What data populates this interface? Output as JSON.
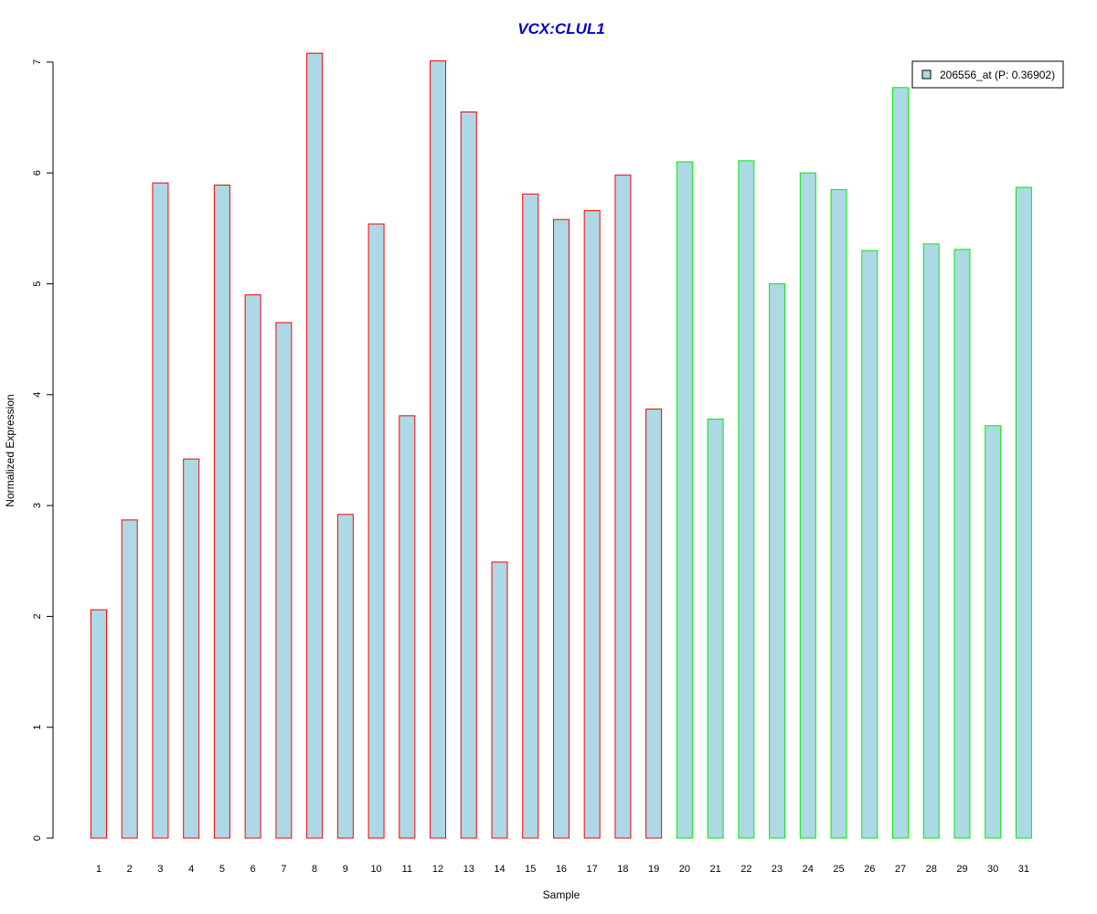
{
  "chart_data": {
    "type": "bar",
    "title": "VCX:CLUL1",
    "xlabel": "Sample",
    "ylabel": "Normalized Expression",
    "ylim": [
      0,
      7
    ],
    "yticks": [
      0,
      1,
      2,
      3,
      4,
      5,
      6,
      7
    ],
    "grid": false,
    "legend_position": "top-right",
    "categories": [
      "1",
      "2",
      "3",
      "4",
      "5",
      "6",
      "7",
      "8",
      "9",
      "10",
      "11",
      "12",
      "13",
      "14",
      "15",
      "16",
      "17",
      "18",
      "19",
      "20",
      "21",
      "22",
      "23",
      "24",
      "25",
      "26",
      "27",
      "28",
      "29",
      "30",
      "31"
    ],
    "series": [
      {
        "name": "206556_at (P: 0.36902)",
        "values": [
          2.06,
          2.87,
          5.91,
          3.42,
          5.89,
          4.9,
          4.65,
          7.08,
          2.92,
          5.54,
          3.81,
          7.01,
          6.55,
          2.49,
          5.81,
          5.58,
          5.66,
          5.98,
          3.87,
          6.1,
          3.78,
          6.11,
          5.0,
          6.0,
          5.85,
          5.3,
          6.77,
          5.36,
          5.31,
          3.72,
          5.87
        ]
      }
    ],
    "group_of_sample": [
      "a",
      "a",
      "a",
      "a",
      "a",
      "a",
      "a",
      "a",
      "a",
      "a",
      "a",
      "a",
      "a",
      "a",
      "a",
      "a",
      "a",
      "a",
      "a",
      "b",
      "b",
      "b",
      "b",
      "b",
      "b",
      "b",
      "b",
      "b",
      "b",
      "b",
      "b"
    ]
  },
  "colors": {
    "title": "#0000cc",
    "bar_fill": "#add8e6",
    "group_a_border": "#ff0000",
    "group_b_border": "#00ee00",
    "axis": "#000000"
  }
}
